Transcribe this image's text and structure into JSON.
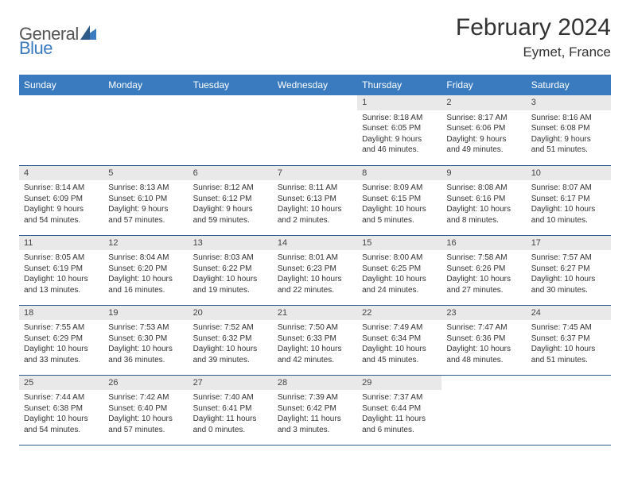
{
  "brand": {
    "part1": "General",
    "part2": "Blue",
    "accent": "#3a7bbf"
  },
  "title": "February 2024",
  "location": "Eymet, France",
  "columns": [
    "Sunday",
    "Monday",
    "Tuesday",
    "Wednesday",
    "Thursday",
    "Friday",
    "Saturday"
  ],
  "header_bg": "#3a7bbf",
  "daynum_bg": "#e9e9e9",
  "rule_color": "#2e5a8a",
  "weeks": [
    [
      {
        "blank": true
      },
      {
        "blank": true
      },
      {
        "blank": true
      },
      {
        "blank": true
      },
      {
        "n": "1",
        "sunrise": "Sunrise: 8:18 AM",
        "sunset": "Sunset: 6:05 PM",
        "day1": "Daylight: 9 hours",
        "day2": "and 46 minutes."
      },
      {
        "n": "2",
        "sunrise": "Sunrise: 8:17 AM",
        "sunset": "Sunset: 6:06 PM",
        "day1": "Daylight: 9 hours",
        "day2": "and 49 minutes."
      },
      {
        "n": "3",
        "sunrise": "Sunrise: 8:16 AM",
        "sunset": "Sunset: 6:08 PM",
        "day1": "Daylight: 9 hours",
        "day2": "and 51 minutes."
      }
    ],
    [
      {
        "n": "4",
        "sunrise": "Sunrise: 8:14 AM",
        "sunset": "Sunset: 6:09 PM",
        "day1": "Daylight: 9 hours",
        "day2": "and 54 minutes."
      },
      {
        "n": "5",
        "sunrise": "Sunrise: 8:13 AM",
        "sunset": "Sunset: 6:10 PM",
        "day1": "Daylight: 9 hours",
        "day2": "and 57 minutes."
      },
      {
        "n": "6",
        "sunrise": "Sunrise: 8:12 AM",
        "sunset": "Sunset: 6:12 PM",
        "day1": "Daylight: 9 hours",
        "day2": "and 59 minutes."
      },
      {
        "n": "7",
        "sunrise": "Sunrise: 8:11 AM",
        "sunset": "Sunset: 6:13 PM",
        "day1": "Daylight: 10 hours",
        "day2": "and 2 minutes."
      },
      {
        "n": "8",
        "sunrise": "Sunrise: 8:09 AM",
        "sunset": "Sunset: 6:15 PM",
        "day1": "Daylight: 10 hours",
        "day2": "and 5 minutes."
      },
      {
        "n": "9",
        "sunrise": "Sunrise: 8:08 AM",
        "sunset": "Sunset: 6:16 PM",
        "day1": "Daylight: 10 hours",
        "day2": "and 8 minutes."
      },
      {
        "n": "10",
        "sunrise": "Sunrise: 8:07 AM",
        "sunset": "Sunset: 6:17 PM",
        "day1": "Daylight: 10 hours",
        "day2": "and 10 minutes."
      }
    ],
    [
      {
        "n": "11",
        "sunrise": "Sunrise: 8:05 AM",
        "sunset": "Sunset: 6:19 PM",
        "day1": "Daylight: 10 hours",
        "day2": "and 13 minutes."
      },
      {
        "n": "12",
        "sunrise": "Sunrise: 8:04 AM",
        "sunset": "Sunset: 6:20 PM",
        "day1": "Daylight: 10 hours",
        "day2": "and 16 minutes."
      },
      {
        "n": "13",
        "sunrise": "Sunrise: 8:03 AM",
        "sunset": "Sunset: 6:22 PM",
        "day1": "Daylight: 10 hours",
        "day2": "and 19 minutes."
      },
      {
        "n": "14",
        "sunrise": "Sunrise: 8:01 AM",
        "sunset": "Sunset: 6:23 PM",
        "day1": "Daylight: 10 hours",
        "day2": "and 22 minutes."
      },
      {
        "n": "15",
        "sunrise": "Sunrise: 8:00 AM",
        "sunset": "Sunset: 6:25 PM",
        "day1": "Daylight: 10 hours",
        "day2": "and 24 minutes."
      },
      {
        "n": "16",
        "sunrise": "Sunrise: 7:58 AM",
        "sunset": "Sunset: 6:26 PM",
        "day1": "Daylight: 10 hours",
        "day2": "and 27 minutes."
      },
      {
        "n": "17",
        "sunrise": "Sunrise: 7:57 AM",
        "sunset": "Sunset: 6:27 PM",
        "day1": "Daylight: 10 hours",
        "day2": "and 30 minutes."
      }
    ],
    [
      {
        "n": "18",
        "sunrise": "Sunrise: 7:55 AM",
        "sunset": "Sunset: 6:29 PM",
        "day1": "Daylight: 10 hours",
        "day2": "and 33 minutes."
      },
      {
        "n": "19",
        "sunrise": "Sunrise: 7:53 AM",
        "sunset": "Sunset: 6:30 PM",
        "day1": "Daylight: 10 hours",
        "day2": "and 36 minutes."
      },
      {
        "n": "20",
        "sunrise": "Sunrise: 7:52 AM",
        "sunset": "Sunset: 6:32 PM",
        "day1": "Daylight: 10 hours",
        "day2": "and 39 minutes."
      },
      {
        "n": "21",
        "sunrise": "Sunrise: 7:50 AM",
        "sunset": "Sunset: 6:33 PM",
        "day1": "Daylight: 10 hours",
        "day2": "and 42 minutes."
      },
      {
        "n": "22",
        "sunrise": "Sunrise: 7:49 AM",
        "sunset": "Sunset: 6:34 PM",
        "day1": "Daylight: 10 hours",
        "day2": "and 45 minutes."
      },
      {
        "n": "23",
        "sunrise": "Sunrise: 7:47 AM",
        "sunset": "Sunset: 6:36 PM",
        "day1": "Daylight: 10 hours",
        "day2": "and 48 minutes."
      },
      {
        "n": "24",
        "sunrise": "Sunrise: 7:45 AM",
        "sunset": "Sunset: 6:37 PM",
        "day1": "Daylight: 10 hours",
        "day2": "and 51 minutes."
      }
    ],
    [
      {
        "n": "25",
        "sunrise": "Sunrise: 7:44 AM",
        "sunset": "Sunset: 6:38 PM",
        "day1": "Daylight: 10 hours",
        "day2": "and 54 minutes."
      },
      {
        "n": "26",
        "sunrise": "Sunrise: 7:42 AM",
        "sunset": "Sunset: 6:40 PM",
        "day1": "Daylight: 10 hours",
        "day2": "and 57 minutes."
      },
      {
        "n": "27",
        "sunrise": "Sunrise: 7:40 AM",
        "sunset": "Sunset: 6:41 PM",
        "day1": "Daylight: 11 hours",
        "day2": "and 0 minutes."
      },
      {
        "n": "28",
        "sunrise": "Sunrise: 7:39 AM",
        "sunset": "Sunset: 6:42 PM",
        "day1": "Daylight: 11 hours",
        "day2": "and 3 minutes."
      },
      {
        "n": "29",
        "sunrise": "Sunrise: 7:37 AM",
        "sunset": "Sunset: 6:44 PM",
        "day1": "Daylight: 11 hours",
        "day2": "and 6 minutes."
      },
      {
        "blank": true
      },
      {
        "blank": true
      }
    ]
  ]
}
